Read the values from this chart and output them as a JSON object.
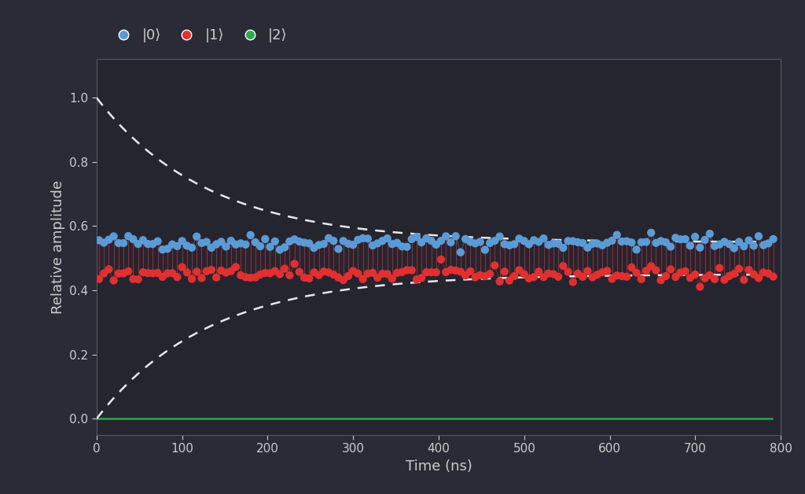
{
  "background_color": "#2b2b38",
  "axes_background": "#252530",
  "title": "",
  "xlabel": "Time (ns)",
  "ylabel": "Relative amplitude",
  "xlim": [
    0,
    800
  ],
  "ylim": [
    -0.05,
    1.12
  ],
  "yticks": [
    0.0,
    0.2,
    0.4,
    0.6,
    0.8,
    1.0
  ],
  "xticks": [
    0,
    100,
    200,
    300,
    400,
    500,
    600,
    700,
    800
  ],
  "color_0": "#5b9bd5",
  "color_1": "#e03030",
  "color_2": "#2ea84a",
  "color_envelope": "white",
  "legend_labels": [
    "|0⟩",
    "|1⟩",
    "|2⟩"
  ],
  "text_color": "#cccccc",
  "T_decay": 130,
  "omega": 0.55,
  "equilibrium_0": 0.55,
  "equilibrium_1": 0.45,
  "amplitude_0": 0.45,
  "amplitude_1": 0.45,
  "t_max": 790,
  "noise_scale": 0.012,
  "markersize": 55,
  "linewidth_connect": 0.8,
  "linewidth_env": 1.8,
  "legend_fontsize": 13,
  "axis_fontsize": 13,
  "tick_fontsize": 11
}
